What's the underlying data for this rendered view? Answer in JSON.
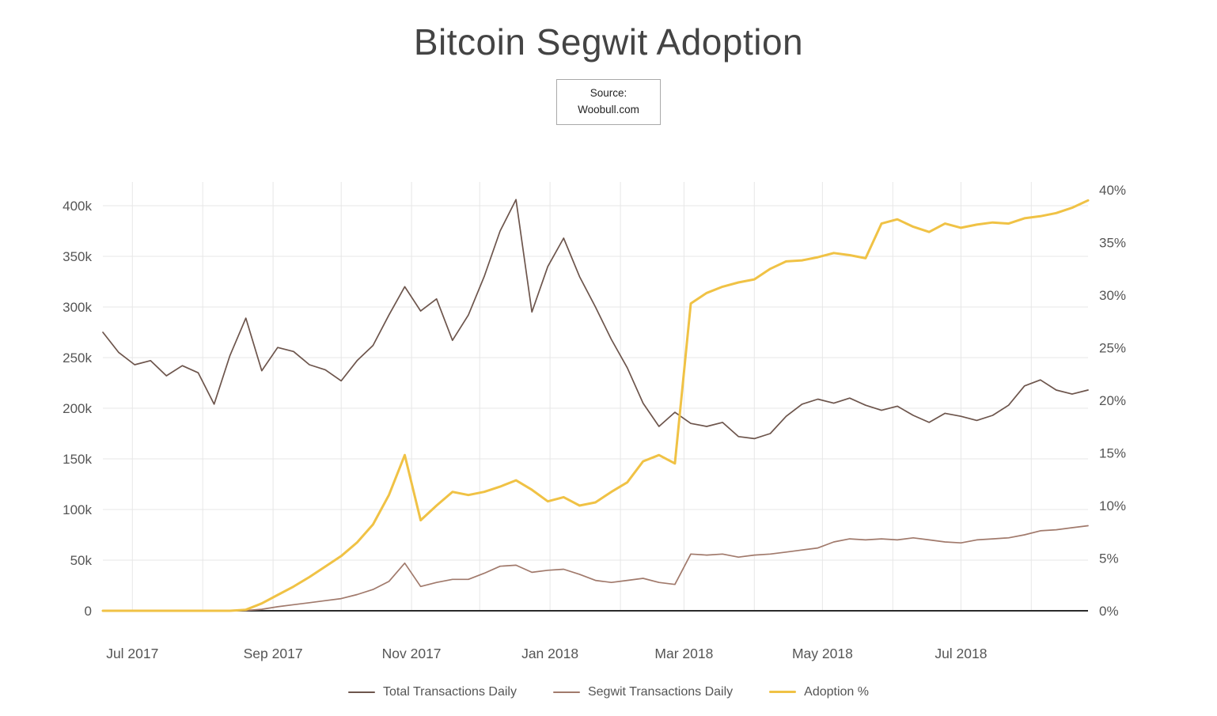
{
  "title": "Bitcoin Segwit Adoption",
  "source": {
    "line1": "Source:",
    "line2": "Woobull.com"
  },
  "legend": [
    {
      "label": "Total Transactions Daily",
      "color": "#6d554c",
      "width": 2
    },
    {
      "label": "Segwit Transactions Daily",
      "color": "#a17a6c",
      "width": 2
    },
    {
      "label": "Adoption %",
      "color": "#f0c245",
      "width": 3
    }
  ],
  "colors": {
    "grid": "#e7e7e7",
    "axis_line": "#2b2b2b",
    "tick_text": "#555555",
    "title_text": "#444444",
    "total_line": "#6d554c",
    "segwit_line": "#a17a6c",
    "adoption_line": "#f0c245"
  },
  "chart_data": {
    "type": "line",
    "title": "Bitcoin Segwit Adoption",
    "grid": true,
    "legend_position": "bottom",
    "x_domain": [
      "2017-06-18",
      "2018-08-26"
    ],
    "x": [
      "2017-06-18",
      "2017-06-25",
      "2017-07-02",
      "2017-07-09",
      "2017-07-16",
      "2017-07-23",
      "2017-07-30",
      "2017-08-06",
      "2017-08-13",
      "2017-08-20",
      "2017-08-27",
      "2017-09-03",
      "2017-09-10",
      "2017-09-17",
      "2017-09-24",
      "2017-10-01",
      "2017-10-08",
      "2017-10-15",
      "2017-10-22",
      "2017-10-29",
      "2017-11-05",
      "2017-11-12",
      "2017-11-19",
      "2017-11-26",
      "2017-12-03",
      "2017-12-10",
      "2017-12-17",
      "2017-12-24",
      "2017-12-31",
      "2018-01-07",
      "2018-01-14",
      "2018-01-21",
      "2018-01-28",
      "2018-02-04",
      "2018-02-11",
      "2018-02-18",
      "2018-02-25",
      "2018-03-04",
      "2018-03-11",
      "2018-03-18",
      "2018-03-25",
      "2018-04-01",
      "2018-04-08",
      "2018-04-15",
      "2018-04-22",
      "2018-04-29",
      "2018-05-06",
      "2018-05-13",
      "2018-05-20",
      "2018-05-27",
      "2018-06-03",
      "2018-06-10",
      "2018-06-17",
      "2018-06-24",
      "2018-07-01",
      "2018-07-08",
      "2018-07-15",
      "2018-07-22",
      "2018-07-29",
      "2018-08-05",
      "2018-08-12",
      "2018-08-19",
      "2018-08-26"
    ],
    "series": [
      {
        "name": "Total Transactions Daily",
        "axis": "left",
        "values_unit": "thousands of transactions per day",
        "color": "#6d554c",
        "stroke_width": 1.7,
        "values": [
          275,
          255,
          243,
          247,
          232,
          242,
          235,
          204,
          252,
          289,
          237,
          260,
          256,
          243,
          238,
          227,
          247,
          262,
          292,
          320,
          296,
          308,
          267,
          292,
          330,
          375,
          406,
          295,
          340,
          368,
          330,
          300,
          268,
          240,
          205,
          182,
          196,
          185,
          182,
          186,
          172,
          170,
          175,
          192,
          204,
          209,
          205,
          210,
          203,
          198,
          202,
          193,
          186,
          195,
          192,
          188,
          193,
          203,
          222,
          228,
          218,
          214,
          218
        ]
      },
      {
        "name": "Segwit Transactions Daily",
        "axis": "left",
        "values_unit": "thousands of transactions per day",
        "color": "#a17a6c",
        "stroke_width": 1.7,
        "values": [
          0,
          0,
          0,
          0,
          0,
          0,
          0,
          0,
          0,
          0.3,
          1.5,
          4,
          6,
          8,
          10,
          12,
          16,
          21,
          29,
          47,
          24,
          28,
          31,
          31,
          37,
          44,
          45,
          38,
          40,
          41,
          36,
          30,
          28,
          30,
          32,
          28,
          26,
          56,
          55,
          56,
          53,
          55,
          56,
          58,
          60,
          62,
          68,
          71,
          70,
          71,
          70,
          72,
          70,
          68,
          67,
          70,
          71,
          72,
          75,
          79,
          80,
          82,
          84
        ]
      },
      {
        "name": "Adoption %",
        "axis": "right",
        "values_unit": "percent",
        "color": "#f0c245",
        "stroke_width": 3,
        "values": [
          0,
          0,
          0,
          0,
          0,
          0,
          0,
          0,
          0,
          0.1,
          0.7,
          1.5,
          2.3,
          3.2,
          4.2,
          5.2,
          6.5,
          8.2,
          11.0,
          14.8,
          8.6,
          10.0,
          11.3,
          11.0,
          11.3,
          11.8,
          12.4,
          11.5,
          10.4,
          10.8,
          10.0,
          10.3,
          11.3,
          12.2,
          14.2,
          14.8,
          14.0,
          29.2,
          30.2,
          30.8,
          31.2,
          31.5,
          32.5,
          33.2,
          33.3,
          33.6,
          34.0,
          33.8,
          33.5,
          36.8,
          37.2,
          36.5,
          36.0,
          36.8,
          36.4,
          36.7,
          36.9,
          36.8,
          37.3,
          37.5,
          37.8,
          38.3,
          39.0
        ]
      }
    ],
    "left_axis": {
      "min": 0,
      "max": 400,
      "tick_step": 50,
      "tick_labels": [
        "0",
        "50k",
        "100k",
        "150k",
        "200k",
        "250k",
        "300k",
        "350k",
        "400k"
      ]
    },
    "right_axis": {
      "min": 0,
      "max": 40,
      "tick_step": 5,
      "tick_labels": [
        "0%",
        "5%",
        "10%",
        "15%",
        "20%",
        "25%",
        "30%",
        "35%",
        "40%"
      ]
    },
    "x_ticks": [
      {
        "date": "2017-07-01",
        "label": "Jul 2017"
      },
      {
        "date": "2017-09-01",
        "label": "Sep 2017"
      },
      {
        "date": "2017-11-01",
        "label": "Nov 2017"
      },
      {
        "date": "2018-01-01",
        "label": "Jan 2018"
      },
      {
        "date": "2018-03-01",
        "label": "Mar 2018"
      },
      {
        "date": "2018-05-01",
        "label": "May 2018"
      },
      {
        "date": "2018-07-01",
        "label": "Jul 2018"
      }
    ],
    "x_gridlines": [
      "2017-07-01",
      "2017-08-01",
      "2017-09-01",
      "2017-10-01",
      "2017-11-01",
      "2017-12-01",
      "2018-01-01",
      "2018-02-01",
      "2018-03-01",
      "2018-04-01",
      "2018-05-01",
      "2018-06-01",
      "2018-07-01",
      "2018-08-01"
    ]
  }
}
